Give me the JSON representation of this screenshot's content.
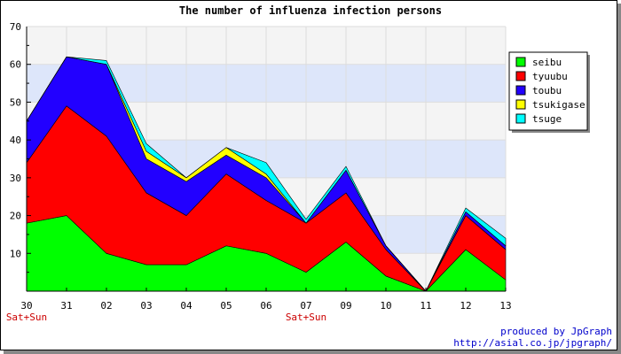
{
  "chart_data": {
    "type": "area",
    "stacked": true,
    "title": "The number of influenza infection persons",
    "xlabel": "",
    "ylabel": "",
    "categories": [
      "30",
      "31",
      "02",
      "03",
      "04",
      "05",
      "06",
      "07",
      "09",
      "10",
      "11",
      "12",
      "13"
    ],
    "weekend_labels": [
      "Sat+Sun",
      "",
      "",
      "",
      "",
      "",
      "",
      "Sat+Sun",
      "",
      "",
      "",
      "",
      ""
    ],
    "ylim": [
      0,
      70
    ],
    "yticks": [
      10,
      20,
      30,
      40,
      50,
      60,
      70
    ],
    "grid": true,
    "legend_position": "right",
    "series": [
      {
        "name": "seibu",
        "color": "#00ff00",
        "values": [
          18,
          20,
          10,
          7,
          7,
          12,
          10,
          5,
          13,
          4,
          0,
          11,
          3
        ]
      },
      {
        "name": "tyuubu",
        "color": "#ff0000",
        "values": [
          16,
          29,
          31,
          19,
          13,
          19,
          14,
          13,
          13,
          7,
          0,
          9,
          8
        ]
      },
      {
        "name": "toubu",
        "color": "#2200ff",
        "values": [
          11,
          13,
          19,
          9,
          9,
          5,
          6,
          0,
          6,
          1,
          0,
          1,
          1
        ]
      },
      {
        "name": "tsukigase",
        "color": "#ffff00",
        "values": [
          0,
          0,
          0,
          2,
          1,
          2,
          1,
          0,
          0,
          0,
          0,
          0,
          0
        ]
      },
      {
        "name": "tsuge",
        "color": "#00ffff",
        "values": [
          0,
          0,
          1,
          2,
          0,
          0,
          3,
          1,
          1,
          0,
          0,
          1,
          2
        ]
      }
    ]
  },
  "credits": {
    "line1": "produced by JpGraph",
    "line2": "http://asial.co.jp/jpgraph/"
  }
}
